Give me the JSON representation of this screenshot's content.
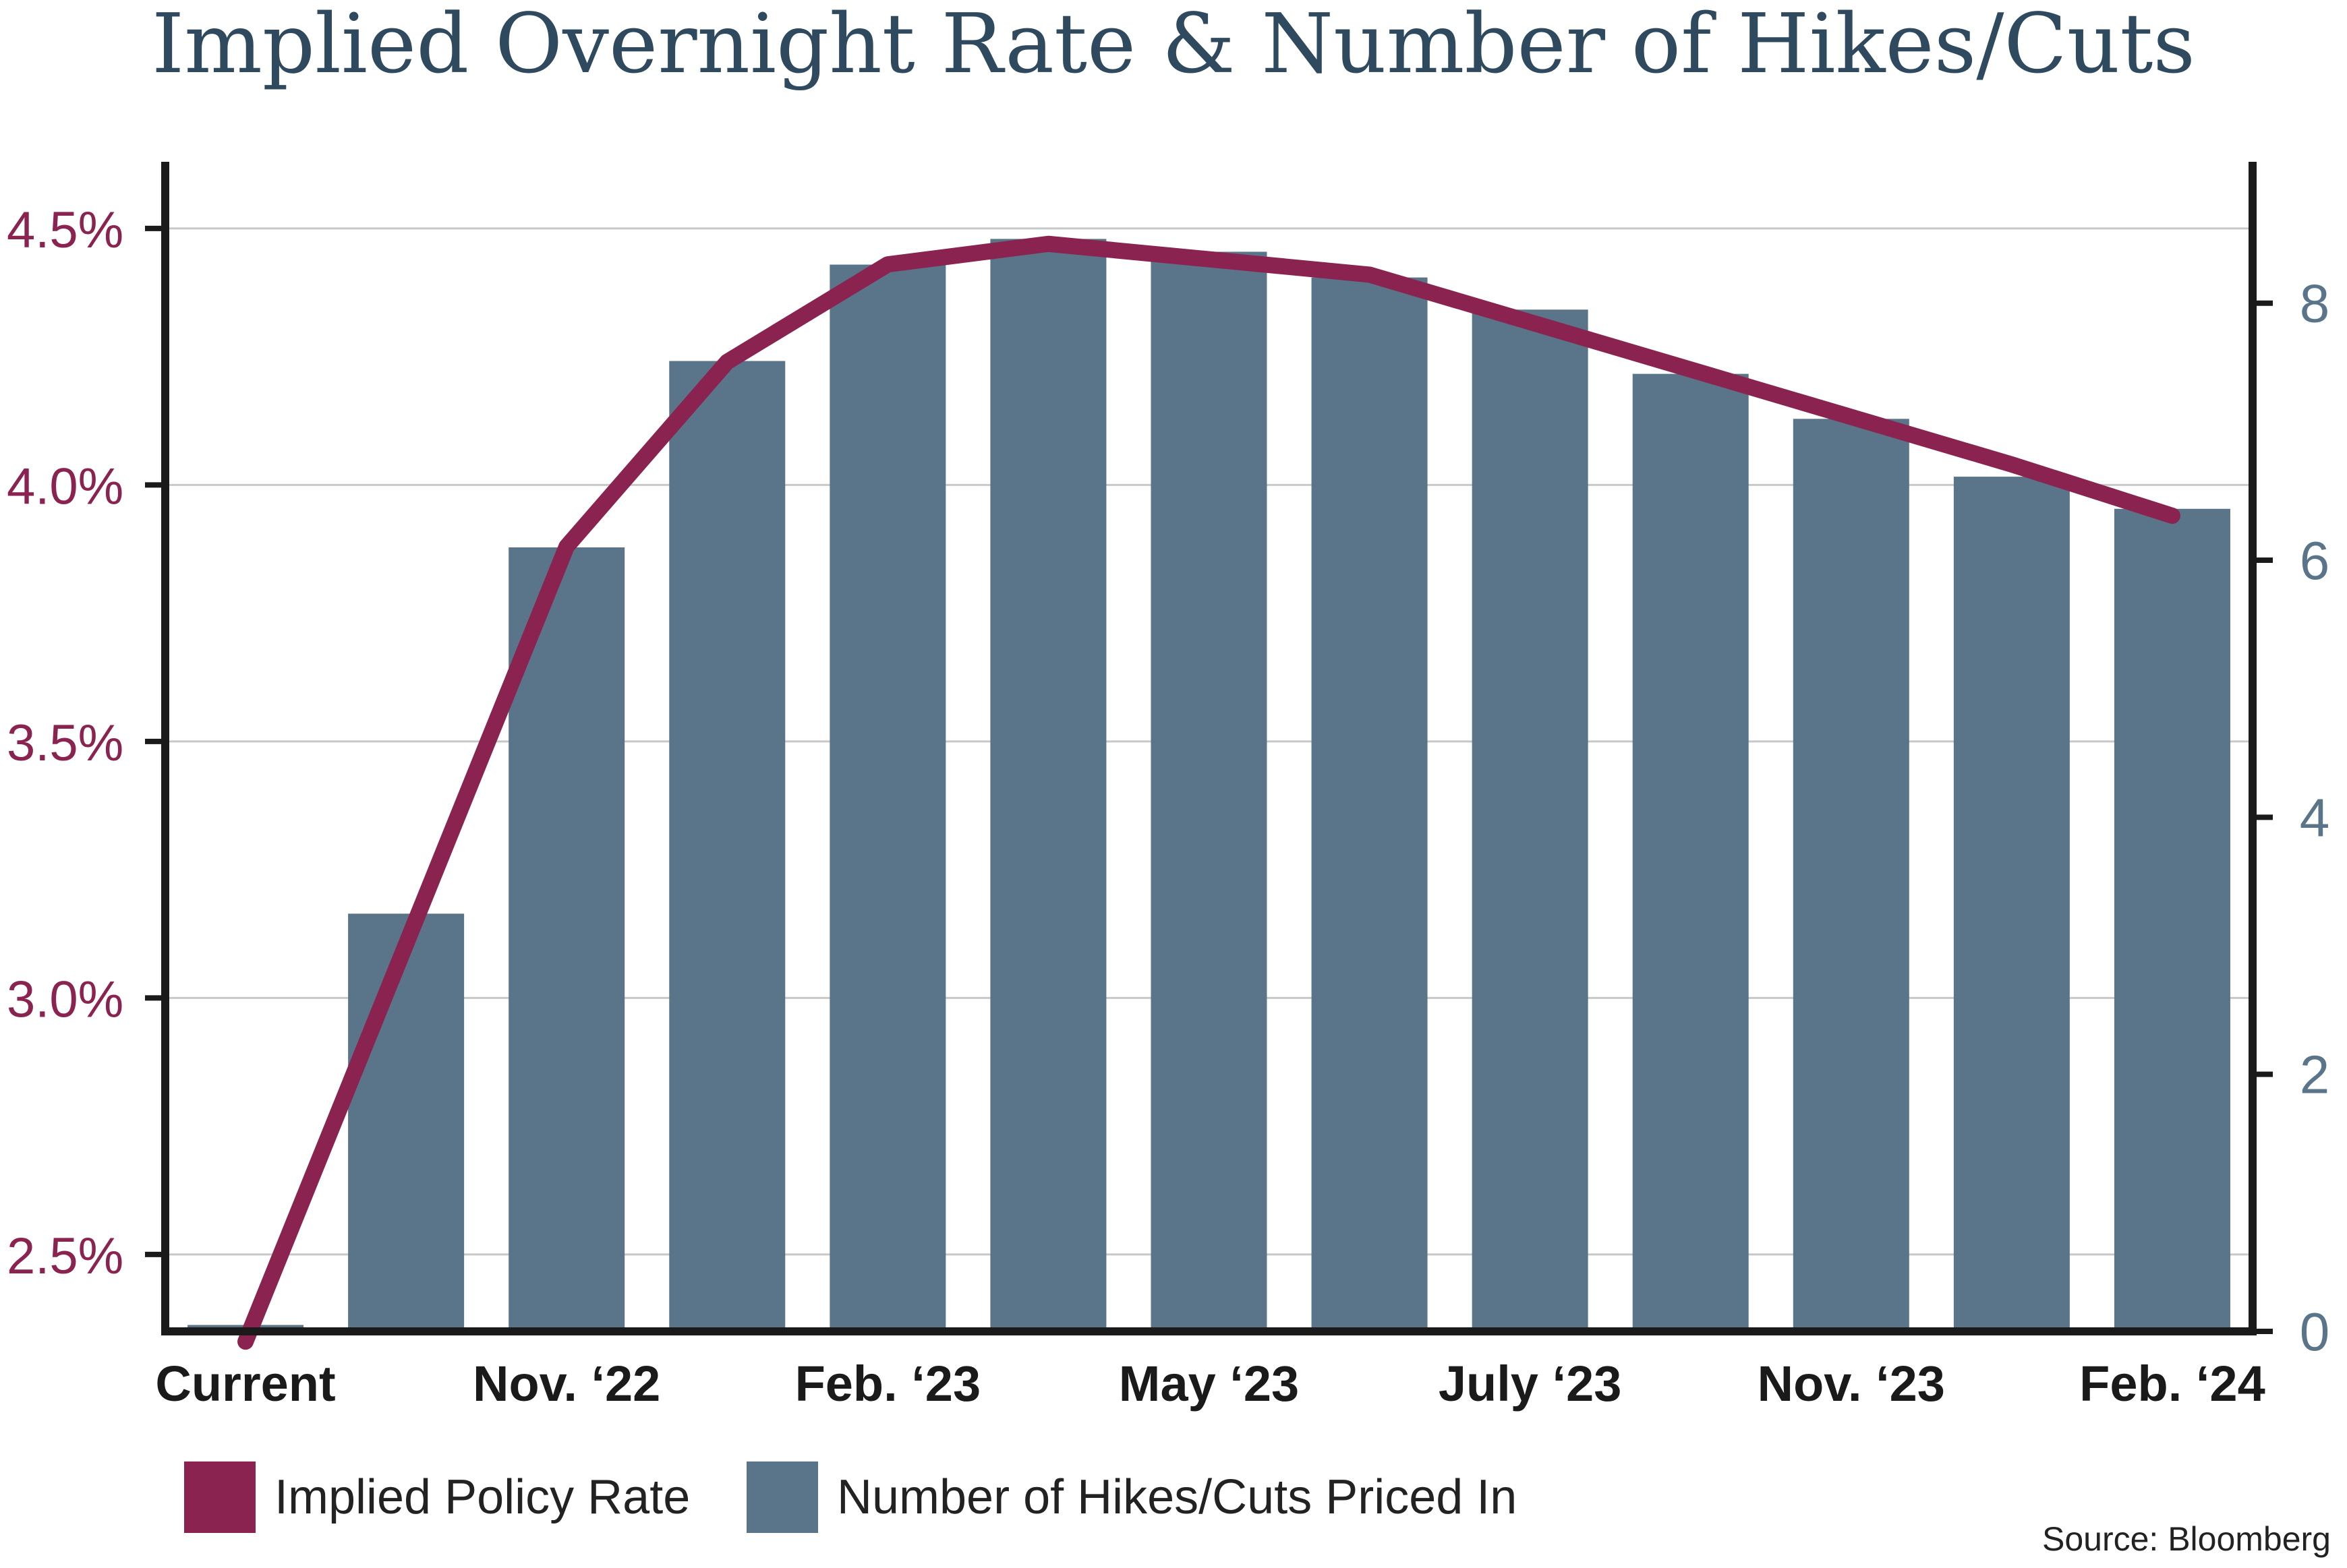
{
  "colors": {
    "rate_line": "#8a2350",
    "bars": "#5a7589",
    "left_axis_text": "#8a2350",
    "right_axis_text": "#5a7589",
    "title": "#2f4a5e",
    "gridline": "#c8c8c8",
    "axis": "#1a1a1a"
  },
  "chart_data": {
    "type": "bar",
    "title": "Implied Overnight Rate & Number of Hikes/Cuts",
    "categories": [
      "",
      "",
      "",
      "",
      "",
      "",
      "",
      "",
      "",
      "",
      "",
      "",
      ""
    ],
    "x_tick_labels": [
      {
        "index": 0,
        "label": "Current"
      },
      {
        "index": 2,
        "label": "Nov. ‘22"
      },
      {
        "index": 4,
        "label": "Feb. ‘23"
      },
      {
        "index": 6,
        "label": "May ‘23"
      },
      {
        "index": 8,
        "label": "July ‘23"
      },
      {
        "index": 10,
        "label": "Nov. ‘23"
      },
      {
        "index": 12,
        "label": "Feb. ‘24"
      }
    ],
    "series": [
      {
        "name": "Number of Hikes/Cuts Priced In",
        "type": "bar",
        "axis": "right",
        "values": [
          0.05,
          3.25,
          6.1,
          7.55,
          8.3,
          8.5,
          8.4,
          8.2,
          7.95,
          7.45,
          7.1,
          6.65,
          6.4
        ]
      },
      {
        "name": "Implied Policy Rate",
        "type": "line",
        "axis": "left",
        "values": [
          2.33,
          null,
          3.88,
          4.24,
          4.43,
          4.47,
          null,
          4.41,
          null,
          null,
          null,
          4.04,
          3.94
        ]
      }
    ],
    "y_left": {
      "ticks": [
        "2.5%",
        "3.0%",
        "3.5%",
        "4.0%",
        "4.5%"
      ],
      "tick_values": [
        2.5,
        3.0,
        3.5,
        4.0,
        4.5
      ],
      "range": [
        2.35,
        4.63
      ]
    },
    "y_right": {
      "ticks": [
        "0",
        "2",
        "4",
        "6",
        "8"
      ],
      "tick_values": [
        0,
        2,
        4,
        6,
        8
      ],
      "range": [
        0,
        9.1
      ]
    },
    "grid": true,
    "legend_placement": "bottom-left"
  },
  "legend": {
    "rate_label": "Implied Policy Rate",
    "hikes_label": "Number of Hikes/Cuts Priced In"
  },
  "source_note": "Source: Bloomberg"
}
